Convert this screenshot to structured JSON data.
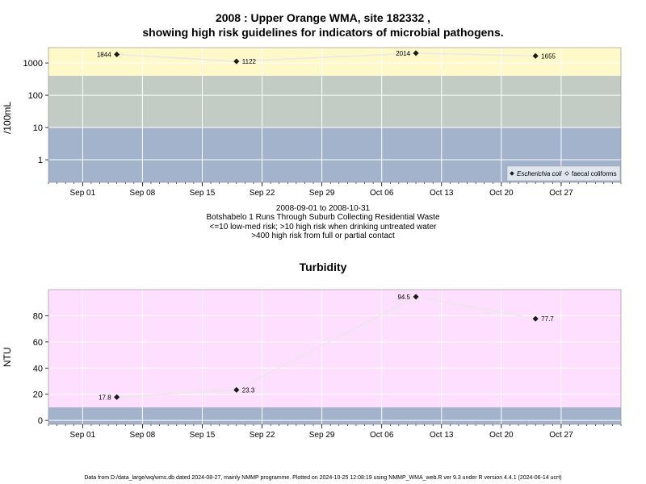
{
  "header": {
    "title_line1": "2008 : Upper Orange WMA, site 182332 ,",
    "title_line2": "showing high risk guidelines for indicators of microbial pathogens."
  },
  "caption": {
    "line1": "2008-09-01 to 2008-10-31",
    "line2": "Botshabelo 1 Runs Through Suburb Collecting Residential Waste",
    "line3": "<=10 low-med risk; >10 high risk when drinking untreated water",
    "line4": ">400 high risk from full or partial contact"
  },
  "footer": "Data from D:/data_large/wq/wms.db dated 2024-08-27, mainly NMMP programme. Plotted on 2024-10-25 12:08:19 using NMMP_WMA_web.R ver 9.3 under R version 4.4.1 (2024-06-14 ucrt)",
  "colors": {
    "band_low": "#a3b3cc",
    "band_mid": "#c2ccc4",
    "band_high": "#fff8c8",
    "turbidity_high": "#ffdfff",
    "grid": "#ffffff",
    "line": "#e8e8e8",
    "marker": "#1a1a1a",
    "legend_bg": "#dfe6ef"
  },
  "chart_data": [
    {
      "type": "scatter",
      "title": "",
      "ylabel": "/100mL",
      "yscale": "log",
      "ylim": [
        0.2,
        3000
      ],
      "ytick_values": [
        1,
        10,
        100,
        1000
      ],
      "ytick_labels": [
        "1",
        "10",
        "100",
        "1000"
      ],
      "xlim": [
        "2008-08-28",
        "2008-11-03"
      ],
      "xtick_dates": [
        "2008-09-01",
        "2008-09-08",
        "2008-09-15",
        "2008-09-22",
        "2008-09-29",
        "2008-10-06",
        "2008-10-13",
        "2008-10-20",
        "2008-10-27"
      ],
      "xtick_labels": [
        "Sep 01",
        "Sep 08",
        "Sep 15",
        "Sep 22",
        "Sep 29",
        "Oct 06",
        "Oct 13",
        "Oct 20",
        "Oct 27"
      ],
      "bands": [
        {
          "from": 0.2,
          "to": 10,
          "color": "#a3b3cc"
        },
        {
          "from": 10,
          "to": 400,
          "color": "#c2ccc4"
        },
        {
          "from": 400,
          "to": 3000,
          "color": "#fff8c8"
        }
      ],
      "grid": true,
      "legend_position": "bottom-right",
      "series": [
        {
          "name": "Escherichia coli",
          "marker": "filled-diamond",
          "points": [
            {
              "x": "2008-09-05",
              "y": 1844,
              "label": "1844",
              "label_side": "left"
            },
            {
              "x": "2008-09-19",
              "y": 1122,
              "label": "1122",
              "label_side": "right"
            },
            {
              "x": "2008-10-10",
              "y": 2014,
              "label": "2014",
              "label_side": "left"
            },
            {
              "x": "2008-10-24",
              "y": 1655,
              "label": "1655",
              "label_side": "right"
            }
          ]
        },
        {
          "name": "faecal coliforms",
          "marker": "open-diamond",
          "points": []
        }
      ]
    },
    {
      "type": "scatter",
      "title": "Turbidity",
      "ylabel": "NTU",
      "yscale": "linear",
      "ylim": [
        -3,
        100
      ],
      "ytick_values": [
        0,
        20,
        40,
        60,
        80
      ],
      "ytick_labels": [
        "0",
        "20",
        "40",
        "60",
        "80"
      ],
      "xlim": [
        "2008-08-28",
        "2008-11-03"
      ],
      "xtick_dates": [
        "2008-09-01",
        "2008-09-08",
        "2008-09-15",
        "2008-09-22",
        "2008-09-29",
        "2008-10-06",
        "2008-10-13",
        "2008-10-20",
        "2008-10-27"
      ],
      "xtick_labels": [
        "Sep 01",
        "Sep 08",
        "Sep 15",
        "Sep 22",
        "Sep 29",
        "Oct 06",
        "Oct 13",
        "Oct 20",
        "Oct 27"
      ],
      "bands": [
        {
          "from": -3,
          "to": 10,
          "color": "#a3b3cc"
        },
        {
          "from": 10,
          "to": 100,
          "color": "#ffdfff"
        }
      ],
      "grid": true,
      "series": [
        {
          "name": "",
          "marker": "filled-diamond",
          "points": [
            {
              "x": "2008-09-05",
              "y": 17.8,
              "label": "17.8",
              "label_side": "left"
            },
            {
              "x": "2008-09-19",
              "y": 23.3,
              "label": "23.3",
              "label_side": "right"
            },
            {
              "x": "2008-10-10",
              "y": 94.5,
              "label": "94.5",
              "label_side": "left"
            },
            {
              "x": "2008-10-24",
              "y": 77.7,
              "label": "77.7",
              "label_side": "right"
            }
          ]
        }
      ]
    }
  ]
}
